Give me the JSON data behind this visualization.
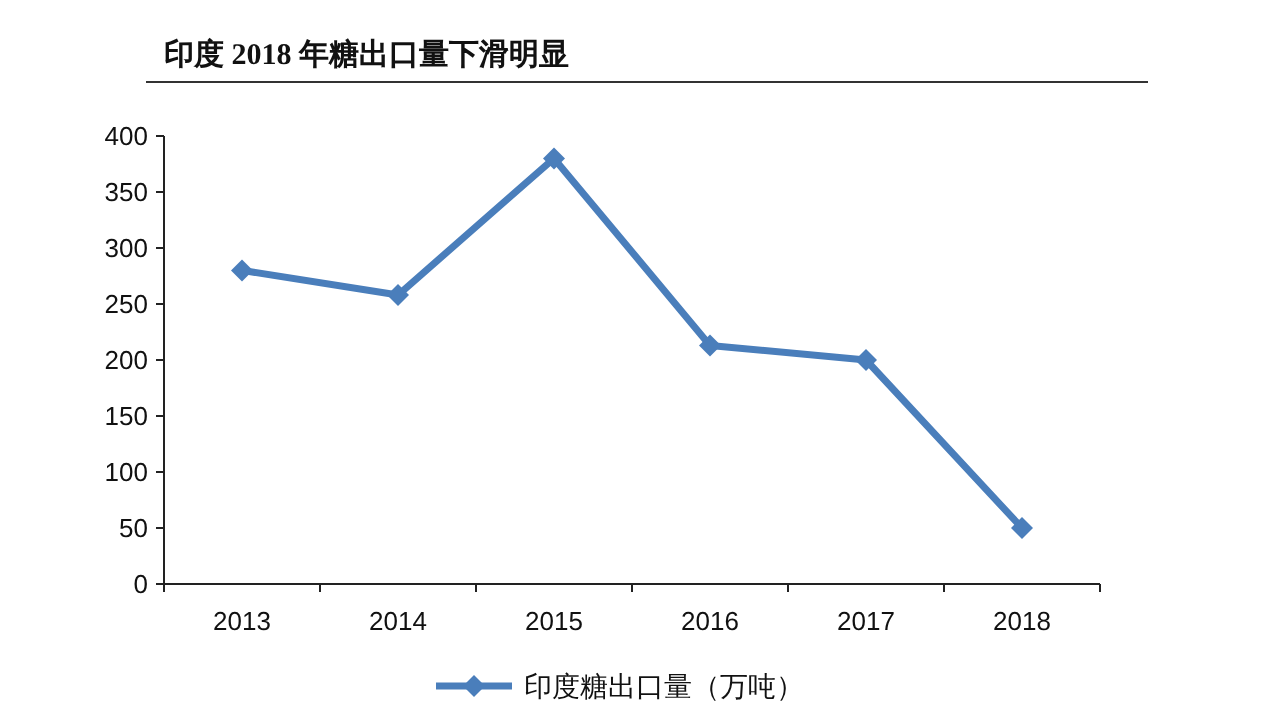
{
  "chart_data": {
    "type": "line",
    "title": "印度 2018 年糖出口量下滑明显",
    "categories": [
      "2013",
      "2014",
      "2015",
      "2016",
      "2017",
      "2018"
    ],
    "series": [
      {
        "name": "印度糖出口量（万吨）",
        "color": "#4a7ebb",
        "values": [
          280,
          258,
          380,
          213,
          200,
          50
        ]
      }
    ],
    "ylim": [
      0,
      400
    ],
    "yticks": [
      0,
      50,
      100,
      150,
      200,
      250,
      300,
      350,
      400
    ],
    "marker": "diamond",
    "line_style": "solid",
    "grid": false,
    "legend": "bottom"
  }
}
